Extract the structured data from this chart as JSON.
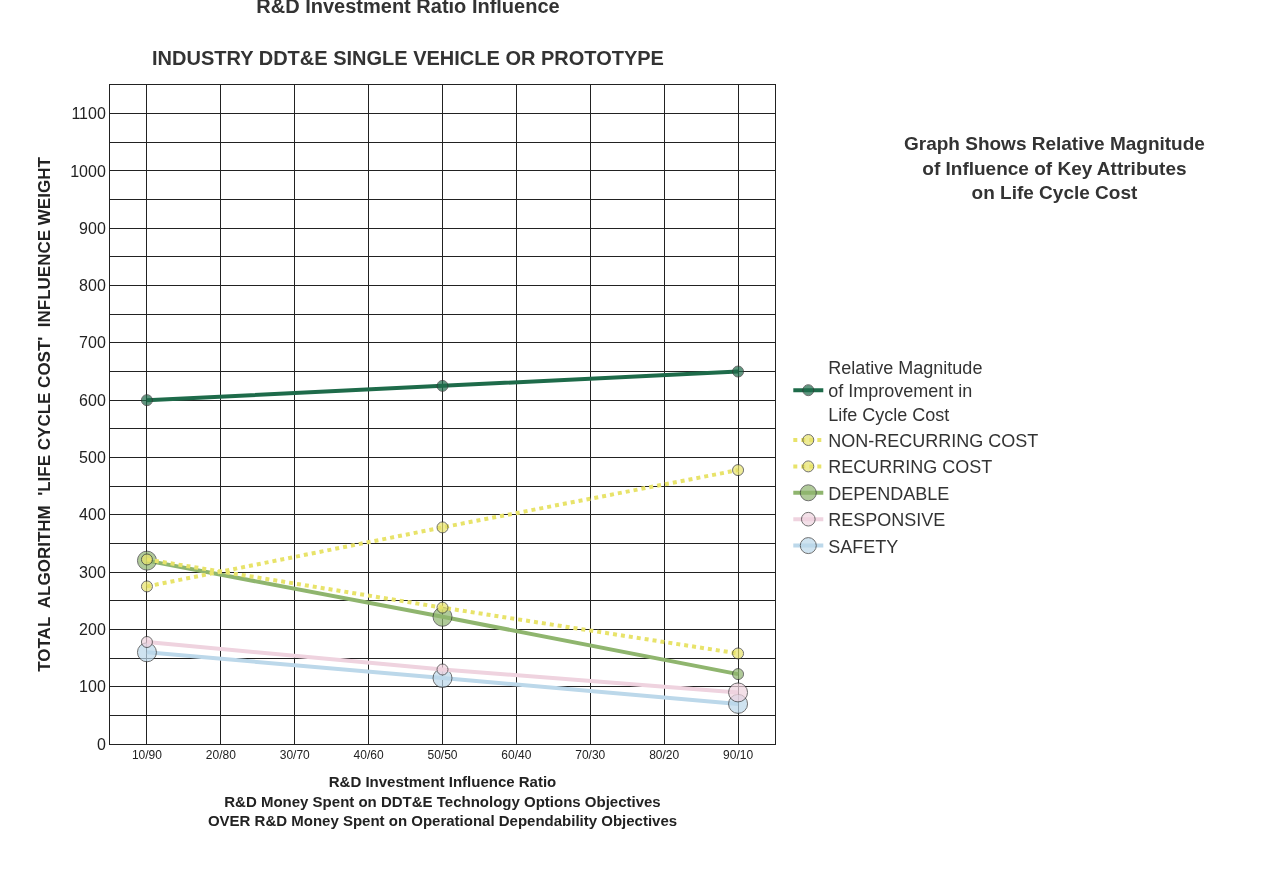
{
  "chart_data": {
    "type": "line",
    "title": "R&D Investment Ratio Influence",
    "subtitle": "INDUSTRY DDT&E SINGLE VEHICLE OR PROTOTYPE",
    "xlabel": "R&D Investment Influence Ratio\nR&D Money Spent on DDT&E Technology Options Objectives\nOVER R&D Money Spent on Operational Dependability Objectives",
    "ylabel": "TOTAL  ALGORITHM  'LIFE CYCLE COST'  INFLUENCE WEIGHT",
    "annotations": [
      "Graph Shows Relative Magnitude\nof Influence of Key Attributes\non Life Cycle Cost"
    ],
    "categories": [
      "10/90",
      "20/80",
      "30/70",
      "40/60",
      "50/50",
      "60/40",
      "70/30",
      "80/20",
      "90/10"
    ],
    "series": [
      {
        "name": "Relative Magnitude\nof Improvement in\nLife Cycle Cost",
        "color": "#1e6b4a",
        "line_style": "solid",
        "values": [
          600,
          null,
          null,
          null,
          625,
          null,
          null,
          null,
          650
        ]
      },
      {
        "name": "NON-RECURRING COST",
        "color": "#e8e36a",
        "line_style": "dotted",
        "values": [
          275,
          null,
          null,
          null,
          378,
          null,
          null,
          null,
          478
        ]
      },
      {
        "name": "RECURRING COST",
        "color": "#e8e36a",
        "line_style": "dotted",
        "values": [
          322,
          null,
          null,
          null,
          238,
          null,
          null,
          null,
          158
        ]
      },
      {
        "name": "DEPENDABLE",
        "color": "#8fb56e",
        "line_style": "solid",
        "values": [
          320,
          null,
          null,
          null,
          222,
          null,
          null,
          null,
          122
        ]
      },
      {
        "name": "RESPONSIVE",
        "color": "#efd3df",
        "line_style": "solid",
        "values": [
          178,
          null,
          null,
          null,
          130,
          null,
          null,
          null,
          90
        ]
      },
      {
        "name": "SAFETY",
        "color": "#bcd8ea",
        "line_style": "solid",
        "values": [
          160,
          null,
          null,
          null,
          115,
          null,
          null,
          null,
          70
        ]
      }
    ],
    "ylim": [
      0,
      1150
    ],
    "yticks": [
      0,
      {
        "value": 50,
        "label": null
      },
      100,
      {
        "value": 150,
        "label": null
      },
      200,
      {
        "value": 250,
        "label": null
      },
      300,
      {
        "value": 350,
        "label": null
      },
      400,
      {
        "value": 450,
        "label": null
      },
      500,
      {
        "value": 550,
        "label": null
      },
      600,
      {
        "value": 650,
        "label": null
      },
      700,
      {
        "value": 750,
        "label": null
      },
      800,
      {
        "value": 850,
        "label": null
      },
      900,
      {
        "value": 950,
        "label": null
      },
      1000,
      {
        "value": 1050,
        "label": null
      },
      1100
    ],
    "grid": true,
    "legend": "right",
    "marker": "circle"
  }
}
